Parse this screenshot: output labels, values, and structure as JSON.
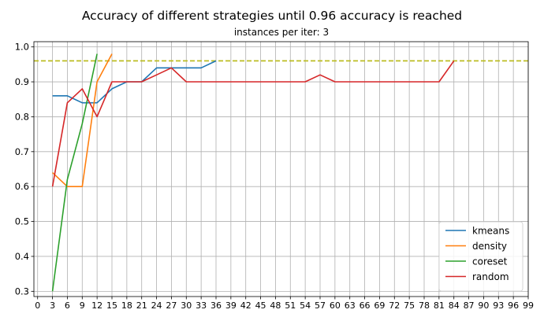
{
  "chart_data": {
    "type": "line",
    "title": "Accuracy of different strategies until 0.96 accuracy is reached",
    "subtitle": "instances per iter: 3",
    "xlabel": "",
    "ylabel": "",
    "xlim": [
      -0.75,
      99
    ],
    "ylim": [
      0.285,
      1.015
    ],
    "xticks": [
      0,
      3,
      6,
      9,
      12,
      15,
      18,
      21,
      24,
      27,
      30,
      33,
      36,
      39,
      42,
      45,
      48,
      51,
      54,
      57,
      60,
      63,
      66,
      69,
      72,
      75,
      78,
      81,
      84,
      87,
      90,
      93,
      96,
      99
    ],
    "yticks": [
      0.3,
      0.4,
      0.5,
      0.6,
      0.7,
      0.8,
      0.9,
      1.0
    ],
    "ytick_labels": [
      "0.3",
      "0.4",
      "0.5",
      "0.6",
      "0.7",
      "0.8",
      "0.9",
      "1.0"
    ],
    "grid": true,
    "legend_position": "lower-right",
    "reference_line": {
      "y": 0.96,
      "color": "#bcbd22",
      "style": "dashed"
    },
    "series": [
      {
        "name": "kmeans",
        "color": "#1f77b4",
        "x": [
          3,
          6,
          9,
          12,
          15,
          18,
          21,
          24,
          27,
          30,
          33,
          36
        ],
        "y": [
          0.86,
          0.86,
          0.84,
          0.84,
          0.88,
          0.9,
          0.9,
          0.94,
          0.94,
          0.94,
          0.94,
          0.96
        ]
      },
      {
        "name": "density",
        "color": "#ff7f0e",
        "x": [
          3,
          6,
          9,
          12,
          15
        ],
        "y": [
          0.64,
          0.6,
          0.6,
          0.9,
          0.98
        ]
      },
      {
        "name": "coreset",
        "color": "#2ca02c",
        "x": [
          3,
          6,
          9,
          12
        ],
        "y": [
          0.3,
          0.62,
          0.78,
          0.98
        ]
      },
      {
        "name": "random",
        "color": "#d62728",
        "x": [
          3,
          6,
          9,
          12,
          15,
          18,
          21,
          24,
          27,
          30,
          33,
          36,
          39,
          42,
          45,
          48,
          51,
          54,
          57,
          60,
          63,
          66,
          69,
          72,
          75,
          78,
          81,
          84
        ],
        "y": [
          0.6,
          0.84,
          0.88,
          0.8,
          0.9,
          0.9,
          0.9,
          0.92,
          0.94,
          0.9,
          0.9,
          0.9,
          0.9,
          0.9,
          0.9,
          0.9,
          0.9,
          0.9,
          0.92,
          0.9,
          0.9,
          0.9,
          0.9,
          0.9,
          0.9,
          0.9,
          0.9,
          0.96
        ]
      }
    ]
  }
}
